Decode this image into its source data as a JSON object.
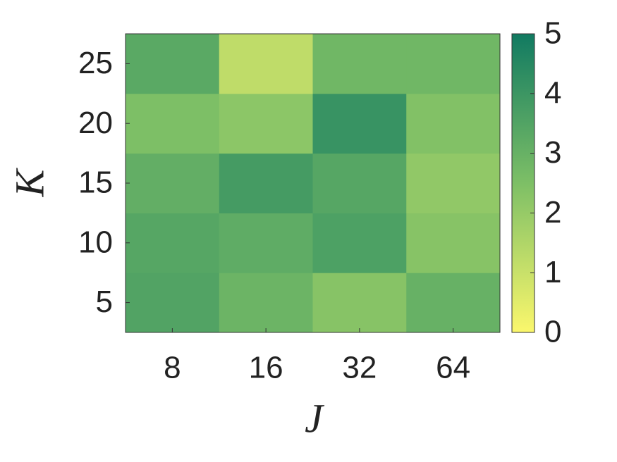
{
  "chart_data": {
    "type": "heatmap",
    "x_label": "J",
    "y_label": "K",
    "x_categories": [
      8,
      16,
      32,
      64
    ],
    "y_categories": [
      5,
      10,
      15,
      20,
      25
    ],
    "values": [
      [
        3.5,
        2.9,
        2.3,
        3.0
      ],
      [
        3.4,
        3.2,
        3.6,
        2.3
      ],
      [
        3.1,
        3.8,
        3.4,
        2.1
      ],
      [
        2.5,
        2.2,
        4.1,
        2.4
      ],
      [
        3.3,
        1.2,
        2.8,
        2.8
      ]
    ],
    "colormap": [
      "#fbf76c",
      "#7dbf66",
      "#117a61"
    ],
    "clim": [
      0,
      5
    ],
    "cticks": [
      0,
      1,
      2,
      3,
      4,
      5
    ]
  }
}
